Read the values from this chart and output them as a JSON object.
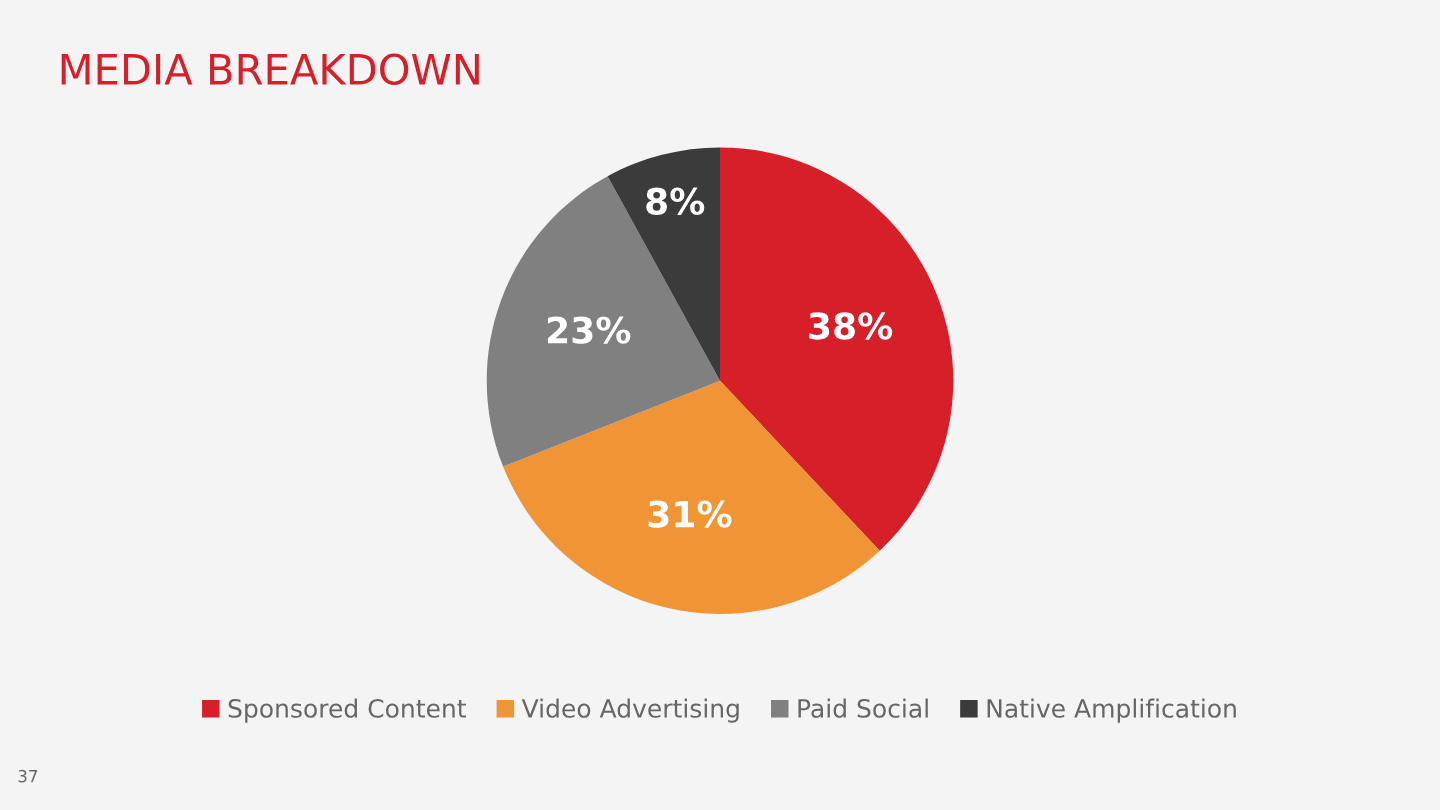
{
  "chart_data": {
    "type": "pie",
    "title": "MEDIA BREAKDOWN",
    "categories": [
      "Sponsored Content",
      "Video Advertising",
      "Paid Social",
      "Native Amplification"
    ],
    "values": [
      38,
      31,
      23,
      8
    ],
    "colors": [
      "#d71f2a",
      "#f09435",
      "#808080",
      "#3b3b3b"
    ],
    "value_labels": [
      "38%",
      "31%",
      "23%",
      "8%"
    ],
    "legend": "bottom",
    "annotations": [
      "37"
    ]
  }
}
